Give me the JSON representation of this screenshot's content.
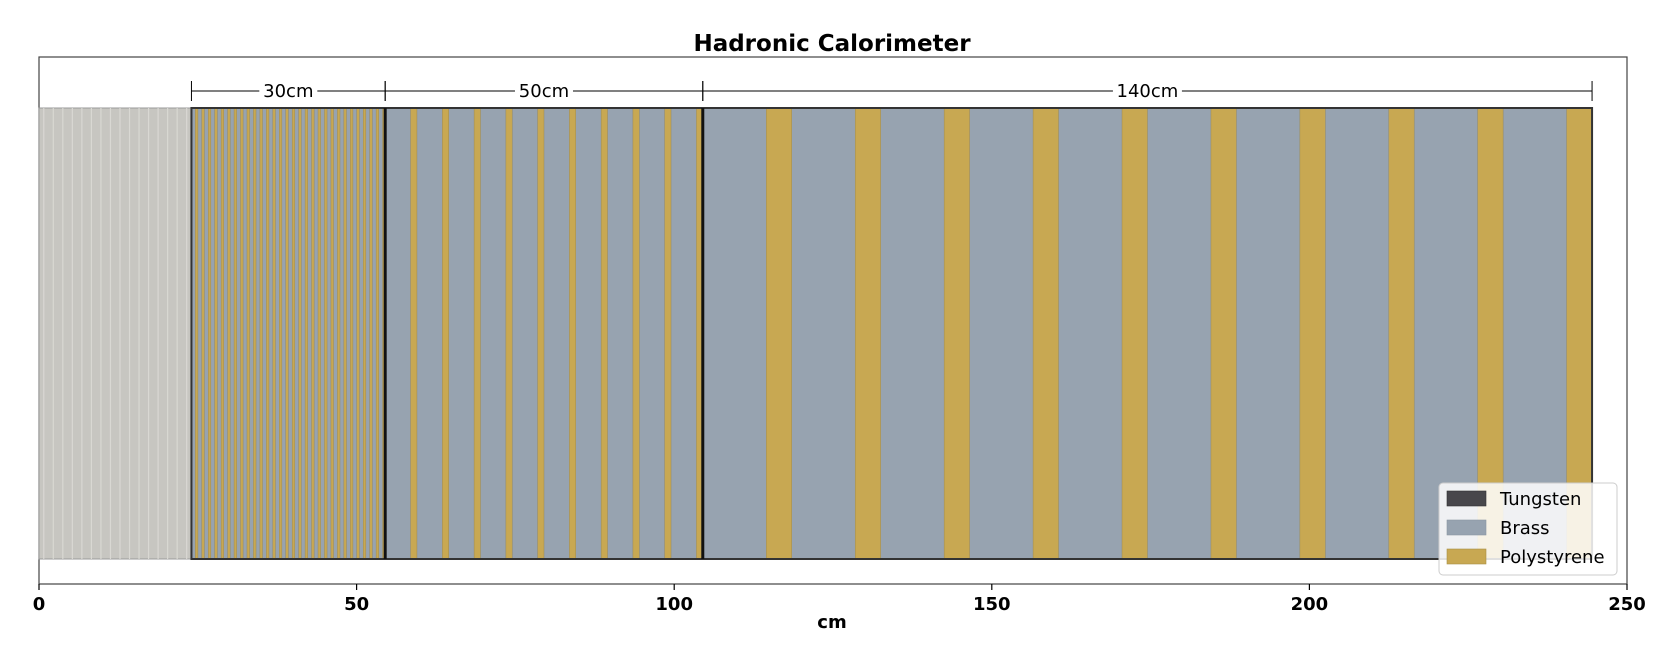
{
  "chart_data": {
    "type": "diagram",
    "title": "Hadronic Calorimeter",
    "xlabel": "cm",
    "xlim": [
      0,
      250
    ],
    "xticks": [
      "0",
      "50",
      "100",
      "150",
      "200",
      "250"
    ],
    "xtick_values": [
      0,
      50,
      100,
      150,
      200,
      250
    ],
    "grid": false,
    "legend_placement": "bottom-right",
    "legend": [
      {
        "name": "Tungsten",
        "color": "#48474b"
      },
      {
        "name": "Brass",
        "color": "#97a3b0"
      },
      {
        "name": "Polystyrene",
        "color": "#c8a852"
      }
    ],
    "upstream_region": {
      "start": 0,
      "end": 24,
      "color": "#c7c6c1",
      "line_color": "#d9d8d3"
    },
    "sections": [
      {
        "label": "30cm",
        "start": 24,
        "end": 54.5,
        "layers": 30,
        "absorber": 0.6,
        "scintillator": 0.4
      },
      {
        "label": "50cm",
        "start": 54.5,
        "end": 104.5,
        "layers": 10,
        "absorber": 4.0,
        "scintillator": 1.0
      },
      {
        "label": "140cm",
        "start": 104.5,
        "end": 244.5,
        "layers": 10,
        "absorber": 10.0,
        "scintillator": 4.0
      }
    ]
  }
}
